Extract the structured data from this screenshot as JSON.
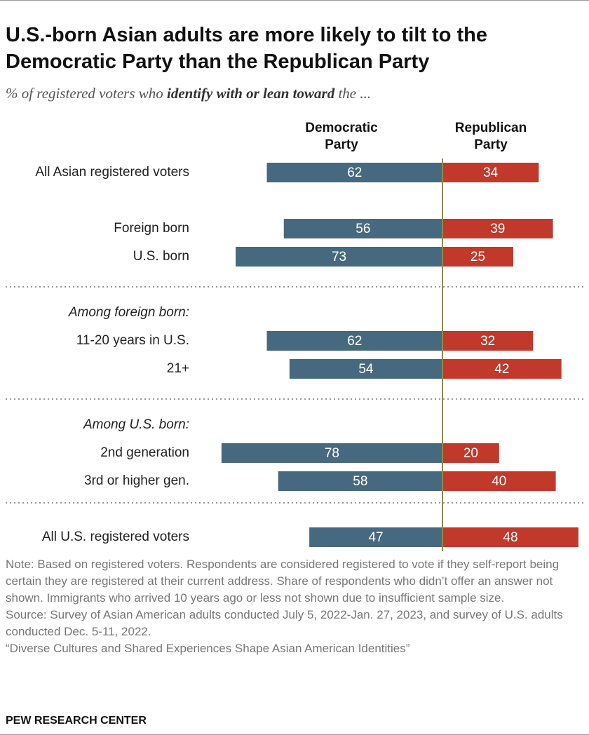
{
  "chart_data": {
    "type": "diverging_bar",
    "title": "U.S.-born Asian adults are more likely to tilt to the Democratic Party than the Republican Party",
    "subtitle_parts": [
      "% of registered voters who",
      "identify with or lean toward",
      "the ..."
    ],
    "categories": [
      "All Asian registered voters",
      "Foreign born",
      "U.S. born",
      "Among foreign born:",
      "11-20 years in U.S.",
      "21+",
      "Among U.S. born:",
      "2nd generation",
      "3rd or higher gen.",
      "All U.S. registered voters"
    ],
    "series": [
      {
        "name": "Democratic Party",
        "color": "#46697f",
        "values": [
          62,
          56,
          73,
          null,
          62,
          54,
          null,
          78,
          58,
          47
        ]
      },
      {
        "name": "Republican Party",
        "color": "#c0392b",
        "values": [
          34,
          39,
          25,
          null,
          32,
          42,
          null,
          20,
          40,
          48
        ]
      }
    ],
    "zero_line_color": "#8b8b4e",
    "note": "Note: Based on registered voters. Respondents are considered registered to vote if they self-report being certain they are registered at their current address. Share of respondents who didn’t offer an answer not shown. Immigrants who arrived 10 years ago or less not shown due to insufficient sample size.",
    "source": "Source: Survey of Asian American adults conducted July 5, 2022-Jan. 27, 2023, and survey of U.S. adults conducted Dec. 5-11, 2022.",
    "report": "“Diverse Cultures and Shared Experiences Shape Asian American Identities”",
    "credit": "PEW RESEARCH CENTER"
  }
}
